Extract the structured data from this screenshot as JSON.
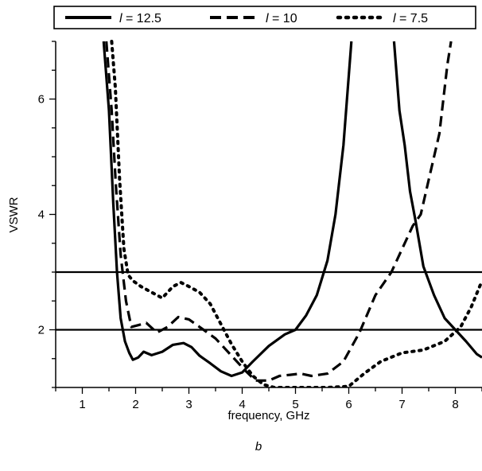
{
  "chart_data": {
    "type": "line",
    "xlabel": "frequency, GHz",
    "ylabel": "VSWR",
    "panel_label": "b",
    "xlim": [
      0.5,
      8.5
    ],
    "ylim": [
      1.0,
      7.0
    ],
    "x_ticks": [
      "1",
      "2",
      "3",
      "4",
      "5",
      "6",
      "7",
      "8"
    ],
    "y_ticks": [
      "2",
      "4",
      "6"
    ],
    "x_tick_values": [
      1,
      2,
      3,
      4,
      5,
      6,
      7,
      8
    ],
    "y_tick_values": [
      2,
      4,
      6
    ],
    "x_minor_step": 0.5,
    "y_minor_step": 0.5,
    "reference_lines": [
      2,
      3
    ],
    "legend_position": "top",
    "series": [
      {
        "name": "l = 12.5",
        "legend_italic_prefix": "l",
        "legend_rest": " = 12.5",
        "style": "solid",
        "segments": [
          [
            [
              1.4,
              7.0
            ],
            [
              1.5,
              5.8
            ],
            [
              1.58,
              4.2
            ],
            [
              1.65,
              3.0
            ],
            [
              1.72,
              2.2
            ],
            [
              1.8,
              1.8
            ],
            [
              1.88,
              1.6
            ],
            [
              1.95,
              1.48
            ],
            [
              2.05,
              1.52
            ],
            [
              2.15,
              1.62
            ],
            [
              2.3,
              1.56
            ],
            [
              2.5,
              1.62
            ],
            [
              2.7,
              1.74
            ],
            [
              2.9,
              1.77
            ],
            [
              3.05,
              1.7
            ],
            [
              3.2,
              1.55
            ],
            [
              3.4,
              1.42
            ],
            [
              3.6,
              1.28
            ],
            [
              3.8,
              1.2
            ],
            [
              4.0,
              1.26
            ],
            [
              4.2,
              1.45
            ],
            [
              4.5,
              1.72
            ],
            [
              4.8,
              1.92
            ],
            [
              5.0,
              2.0
            ],
            [
              5.2,
              2.25
            ],
            [
              5.4,
              2.6
            ],
            [
              5.6,
              3.2
            ],
            [
              5.75,
              4.0
            ],
            [
              5.9,
              5.2
            ],
            [
              6.05,
              7.0
            ]
          ],
          [
            [
              6.85,
              7.0
            ],
            [
              6.95,
              5.8
            ],
            [
              7.05,
              5.2
            ],
            [
              7.15,
              4.4
            ],
            [
              7.25,
              3.9
            ],
            [
              7.4,
              3.1
            ],
            [
              7.6,
              2.6
            ],
            [
              7.8,
              2.2
            ],
            [
              8.0,
              2.0
            ],
            [
              8.2,
              1.8
            ],
            [
              8.4,
              1.58
            ],
            [
              8.5,
              1.52
            ]
          ]
        ]
      },
      {
        "name": "l = 10",
        "legend_italic_prefix": "l",
        "legend_rest": " = 10",
        "style": "dashed",
        "segments": [
          [
            [
              1.45,
              7.0
            ],
            [
              1.55,
              5.8
            ],
            [
              1.63,
              4.5
            ],
            [
              1.72,
              3.3
            ],
            [
              1.82,
              2.5
            ],
            [
              1.92,
              2.05
            ],
            [
              2.05,
              2.08
            ],
            [
              2.2,
              2.12
            ],
            [
              2.4,
              1.95
            ],
            [
              2.6,
              2.05
            ],
            [
              2.8,
              2.22
            ],
            [
              3.0,
              2.18
            ],
            [
              3.2,
              2.05
            ],
            [
              3.5,
              1.85
            ],
            [
              3.8,
              1.55
            ],
            [
              4.05,
              1.3
            ],
            [
              4.25,
              1.12
            ],
            [
              4.5,
              1.12
            ],
            [
              4.7,
              1.2
            ],
            [
              4.9,
              1.22
            ],
            [
              5.1,
              1.24
            ],
            [
              5.3,
              1.2
            ],
            [
              5.6,
              1.24
            ],
            [
              5.9,
              1.45
            ],
            [
              6.2,
              1.95
            ],
            [
              6.5,
              2.6
            ],
            [
              6.8,
              3.0
            ],
            [
              7.0,
              3.4
            ],
            [
              7.2,
              3.8
            ],
            [
              7.35,
              4.0
            ],
            [
              7.5,
              4.6
            ],
            [
              7.7,
              5.4
            ],
            [
              7.85,
              6.6
            ],
            [
              7.92,
              7.0
            ]
          ]
        ]
      },
      {
        "name": "l = 7.5",
        "legend_italic_prefix": "l",
        "legend_rest": " = 7.5",
        "style": "dotted",
        "segments": [
          [
            [
              1.55,
              7.0
            ],
            [
              1.62,
              6.2
            ],
            [
              1.7,
              4.6
            ],
            [
              1.78,
              3.4
            ],
            [
              1.86,
              2.95
            ],
            [
              1.95,
              2.85
            ],
            [
              2.1,
              2.75
            ],
            [
              2.3,
              2.65
            ],
            [
              2.5,
              2.55
            ],
            [
              2.7,
              2.75
            ],
            [
              2.85,
              2.82
            ],
            [
              3.0,
              2.75
            ],
            [
              3.2,
              2.65
            ],
            [
              3.4,
              2.45
            ],
            [
              3.6,
              2.1
            ],
            [
              3.8,
              1.75
            ],
            [
              4.0,
              1.45
            ],
            [
              4.2,
              1.2
            ],
            [
              4.4,
              1.05
            ],
            [
              4.6,
              1.0
            ],
            [
              4.8,
              1.0
            ],
            [
              5.2,
              1.0
            ],
            [
              5.6,
              1.0
            ],
            [
              6.0,
              1.02
            ],
            [
              6.3,
              1.25
            ],
            [
              6.6,
              1.45
            ],
            [
              7.0,
              1.6
            ],
            [
              7.4,
              1.65
            ],
            [
              7.8,
              1.8
            ],
            [
              8.1,
              2.05
            ],
            [
              8.3,
              2.4
            ],
            [
              8.5,
              2.85
            ]
          ]
        ]
      }
    ]
  }
}
